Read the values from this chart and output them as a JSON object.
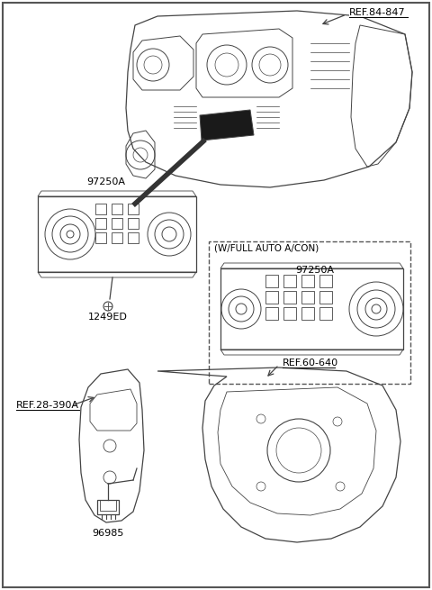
{
  "bg_color": "#ffffff",
  "border_color": "#555555",
  "line_color": "#444444",
  "text_color": "#000000",
  "labels": {
    "ref_84847": "REF.84-847",
    "ref_60640": "REF.60-640",
    "ref_28390a": "REF.28-390A",
    "part_97250a_1": "97250A",
    "part_97250a_2": "97250A",
    "part_1249ed": "1249ED",
    "part_96985": "96985",
    "auto_acon": "(W/FULL AUTO A/CON)"
  },
  "font_size_label": 8,
  "font_size_ref": 8
}
